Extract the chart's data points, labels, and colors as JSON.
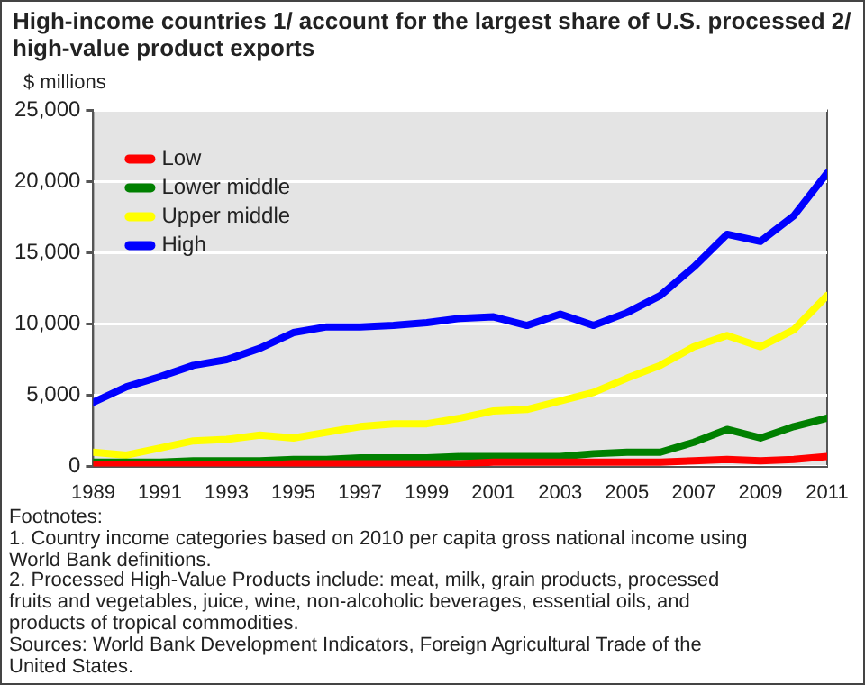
{
  "chart_data": {
    "type": "line",
    "title": "High-income countries 1/ account for the largest share of U.S. processed 2/ high-value product exports",
    "ylabel": "$ millions",
    "x": [
      1989,
      1990,
      1991,
      1992,
      1993,
      1994,
      1995,
      1996,
      1997,
      1998,
      1999,
      2000,
      2001,
      2002,
      2003,
      2004,
      2005,
      2006,
      2007,
      2008,
      2009,
      2010,
      2011
    ],
    "series": [
      {
        "name": "Low",
        "color": "#ff0000",
        "values": [
          100,
          100,
          100,
          100,
          100,
          100,
          200,
          200,
          200,
          200,
          200,
          200,
          300,
          300,
          300,
          300,
          300,
          300,
          400,
          500,
          400,
          500,
          700
        ]
      },
      {
        "name": "Lower middle",
        "color": "#008000",
        "values": [
          300,
          300,
          300,
          400,
          400,
          400,
          500,
          500,
          600,
          600,
          600,
          700,
          700,
          700,
          700,
          900,
          1000,
          1000,
          1700,
          2600,
          2000,
          2800,
          3400
        ]
      },
      {
        "name": "Upper middle",
        "color": "#ffff00",
        "values": [
          1000,
          800,
          1300,
          1800,
          1900,
          2200,
          2000,
          2400,
          2800,
          3000,
          3000,
          3400,
          3900,
          4000,
          4600,
          5200,
          6200,
          7100,
          8400,
          9200,
          8400,
          9600,
          12000
        ]
      },
      {
        "name": "High",
        "color": "#0000ff",
        "values": [
          4500,
          5600,
          6300,
          7100,
          7500,
          8300,
          9400,
          9800,
          9800,
          9900,
          10100,
          10400,
          10500,
          9900,
          10700,
          9900,
          10800,
          12000,
          14000,
          16300,
          15800,
          17600,
          20600
        ]
      }
    ],
    "xlim": [
      1989,
      2011
    ],
    "xticks": [
      1989,
      1991,
      1993,
      1995,
      1997,
      1999,
      2001,
      2003,
      2005,
      2007,
      2009,
      2011
    ],
    "ylim": [
      0,
      25000
    ],
    "yticks": [
      {
        "value": 0,
        "label": "0"
      },
      {
        "value": 5000,
        "label": "5,000"
      },
      {
        "value": 10000,
        "label": "10,000"
      },
      {
        "value": 15000,
        "label": "15,000"
      },
      {
        "value": 20000,
        "label": "20,000"
      },
      {
        "value": 25000,
        "label": "25,000"
      }
    ],
    "grid": "y",
    "legend": "top left",
    "marker": "none",
    "annotations": [
      "Footnotes:",
      "1. Country income categories based on 2010 per capita gross national income using World Bank definitions.",
      "2. Processed High-Value Products include: meat, milk, grain products, processed fruits and vegetables, juice, wine, non-alcoholic beverages, essential oils, and products of tropical commodities.",
      "Sources: World Bank Development Indicators, Foreign Agricultural Trade of the United States."
    ]
  }
}
